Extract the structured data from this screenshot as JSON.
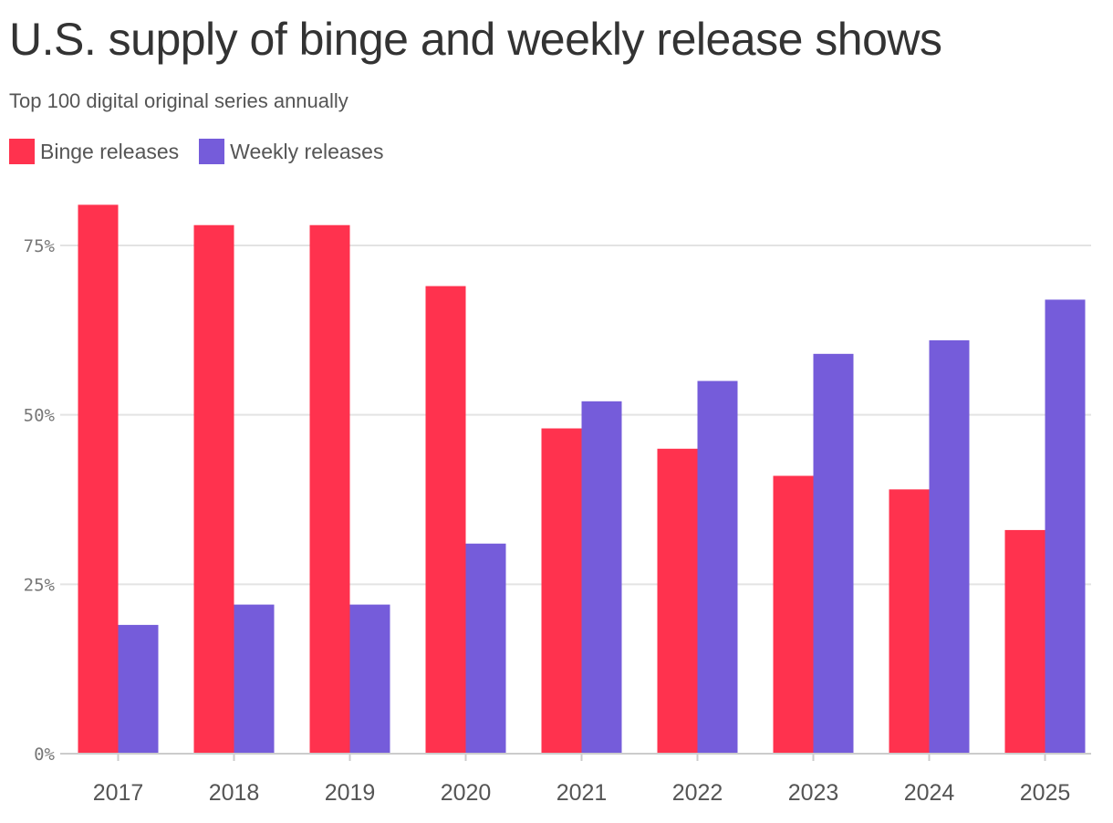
{
  "title": "U.S. supply of binge and weekly release shows",
  "subtitle": "Top 100 digital original series annually",
  "colors": {
    "binge": "#ff324e",
    "weekly": "#755cda",
    "grid": "#e3e3e3",
    "axis": "#cccccc",
    "tick_text": "#777777",
    "category_text": "#555555"
  },
  "legend": [
    {
      "label": "Binge releases",
      "color": "#ff324e"
    },
    {
      "label": "Weekly releases",
      "color": "#755cda"
    }
  ],
  "chart_data": {
    "type": "bar",
    "categories": [
      "2017",
      "2018",
      "2019",
      "2020",
      "2021",
      "2022",
      "2023",
      "2024",
      "2025"
    ],
    "series": [
      {
        "name": "Binge releases",
        "values": [
          81,
          78,
          78,
          69,
          48,
          45,
          41,
          39,
          33
        ]
      },
      {
        "name": "Weekly releases",
        "values": [
          19,
          22,
          22,
          31,
          52,
          55,
          59,
          61,
          67
        ]
      }
    ],
    "yticks": [
      {
        "value": 0,
        "label": "0%"
      },
      {
        "value": 25,
        "label": "25%"
      },
      {
        "value": 50,
        "label": "50%"
      },
      {
        "value": 75,
        "label": "75%"
      }
    ],
    "ylim": [
      0,
      100
    ],
    "grid": true,
    "legend_position": "top-left"
  }
}
